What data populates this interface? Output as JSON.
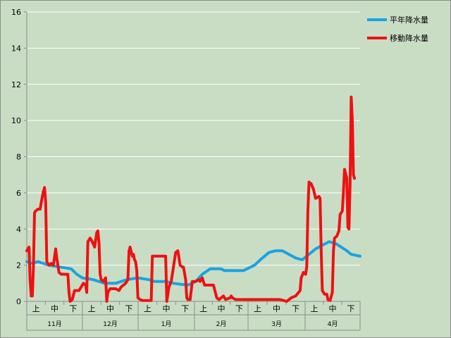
{
  "chart_data": {
    "type": "line",
    "ylim": [
      0,
      16
    ],
    "yticks": [
      0,
      2,
      4,
      6,
      8,
      10,
      12,
      14,
      16
    ],
    "grid": true,
    "legend_position": "top-right",
    "x_sub_labels": [
      "上",
      "中",
      "下"
    ],
    "x_month_labels": [
      "11月",
      "12月",
      "1月",
      "2月",
      "3月",
      "4月"
    ],
    "x_count": 180,
    "series": [
      {
        "name": "平年降水量",
        "color": "#1aa3e0",
        "points": [
          [
            0,
            2.2
          ],
          [
            5,
            2.1
          ],
          [
            10,
            2.2
          ],
          [
            15,
            2.1
          ],
          [
            20,
            2.0
          ],
          [
            30,
            1.9
          ],
          [
            40,
            1.8
          ],
          [
            45,
            1.5
          ],
          [
            50,
            1.3
          ],
          [
            60,
            1.2
          ],
          [
            70,
            1.0
          ],
          [
            80,
            1.0
          ],
          [
            90,
            1.2
          ],
          [
            100,
            1.3
          ],
          [
            110,
            1.2
          ],
          [
            115,
            1.1
          ],
          [
            125,
            1.1
          ],
          [
            132,
            1.0
          ],
          [
            138,
            0.95
          ],
          [
            145,
            0.9
          ],
          [
            152,
            1.1
          ],
          [
            158,
            1.5
          ],
          [
            165,
            1.8
          ],
          [
            175,
            1.8
          ],
          [
            178,
            1.7
          ],
          [
            185,
            1.7
          ],
          [
            195,
            1.7
          ],
          [
            205,
            2.0
          ],
          [
            212,
            2.4
          ],
          [
            218,
            2.7
          ],
          [
            224,
            2.8
          ],
          [
            230,
            2.8
          ],
          [
            236,
            2.6
          ],
          [
            242,
            2.4
          ],
          [
            248,
            2.3
          ],
          [
            254,
            2.6
          ],
          [
            260,
            2.9
          ],
          [
            266,
            3.1
          ],
          [
            272,
            3.3
          ],
          [
            278,
            3.2
          ],
          [
            283,
            3.0
          ],
          [
            288,
            2.8
          ],
          [
            292,
            2.6
          ],
          [
            300,
            2.5
          ]
        ]
      },
      {
        "name": "移動降水量",
        "color": "#ee1111",
        "points": [
          [
            0,
            2.8
          ],
          [
            2,
            3.0
          ],
          [
            3,
            1.2
          ],
          [
            4,
            0.3
          ],
          [
            5,
            0.3
          ],
          [
            6,
            2.0
          ],
          [
            7,
            4.9
          ],
          [
            8,
            5.0
          ],
          [
            10,
            5.1
          ],
          [
            12,
            5.1
          ],
          [
            14,
            5.8
          ],
          [
            15,
            6.1
          ],
          [
            16,
            6.3
          ],
          [
            17,
            5.5
          ],
          [
            18,
            2.2
          ],
          [
            20,
            2.0
          ],
          [
            22,
            2.1
          ],
          [
            24,
            2.0
          ],
          [
            26,
            2.9
          ],
          [
            27,
            2.4
          ],
          [
            29,
            1.6
          ],
          [
            31,
            1.5
          ],
          [
            35,
            1.5
          ],
          [
            37,
            1.5
          ],
          [
            38,
            0.5
          ],
          [
            39,
            0.0
          ],
          [
            41,
            0.1
          ],
          [
            43,
            0.6
          ],
          [
            47,
            0.6
          ],
          [
            51,
            1.0
          ],
          [
            53,
            0.9
          ],
          [
            54,
            0.5
          ],
          [
            55,
            3.3
          ],
          [
            57,
            3.5
          ],
          [
            59,
            3.3
          ],
          [
            61,
            3.0
          ],
          [
            63,
            3.8
          ],
          [
            64,
            3.9
          ],
          [
            65,
            3.2
          ],
          [
            66,
            1.5
          ],
          [
            67,
            1.2
          ],
          [
            69,
            1.1
          ],
          [
            71,
            1.3
          ],
          [
            72,
            0.0
          ],
          [
            73,
            0.5
          ],
          [
            75,
            0.7
          ],
          [
            80,
            0.7
          ],
          [
            83,
            0.6
          ],
          [
            85,
            0.8
          ],
          [
            87,
            0.9
          ],
          [
            89,
            1.0
          ],
          [
            91,
            1.2
          ],
          [
            92,
            2.8
          ],
          [
            93,
            3.0
          ],
          [
            95,
            2.5
          ],
          [
            96,
            2.6
          ],
          [
            97,
            2.3
          ],
          [
            98,
            2.2
          ],
          [
            99,
            1.7
          ],
          [
            100,
            0.2
          ],
          [
            102,
            0.1
          ],
          [
            104,
            0.05
          ],
          [
            108,
            0.05
          ],
          [
            109,
            0.05
          ],
          [
            112,
            0.05
          ],
          [
            113,
            2.5
          ],
          [
            125,
            2.5
          ],
          [
            126,
            0.0
          ],
          [
            128,
            0.8
          ],
          [
            130,
            1.1
          ],
          [
            133,
            2.3
          ],
          [
            134,
            2.7
          ],
          [
            136,
            2.8
          ],
          [
            138,
            2.0
          ],
          [
            140,
            1.9
          ],
          [
            141,
            1.9
          ],
          [
            143,
            1.2
          ],
          [
            144,
            0.2
          ],
          [
            145,
            0.1
          ],
          [
            147,
            0.1
          ],
          [
            149,
            1.1
          ],
          [
            152,
            1.1
          ],
          [
            155,
            1.2
          ],
          [
            156,
            1.1
          ],
          [
            158,
            1.3
          ],
          [
            160,
            0.9
          ],
          [
            163,
            0.9
          ],
          [
            168,
            0.9
          ],
          [
            171,
            0.2
          ],
          [
            173,
            0.1
          ],
          [
            175,
            0.2
          ],
          [
            177,
            0.3
          ],
          [
            179,
            0.1
          ],
          [
            183,
            0.2
          ],
          [
            184,
            0.3
          ],
          [
            185,
            0.2
          ],
          [
            188,
            0.1
          ],
          [
            200,
            0.1
          ],
          [
            215,
            0.1
          ],
          [
            228,
            0.1
          ],
          [
            234,
            0.0
          ],
          [
            236,
            0.1
          ],
          [
            238,
            0.2
          ],
          [
            242,
            0.3
          ],
          [
            246,
            0.6
          ],
          [
            247,
            1.3
          ],
          [
            249,
            1.6
          ],
          [
            251,
            1.5
          ],
          [
            252,
            1.9
          ],
          [
            253,
            5.0
          ],
          [
            254,
            6.6
          ],
          [
            256,
            6.5
          ],
          [
            258,
            6.2
          ],
          [
            260,
            5.7
          ],
          [
            263,
            5.8
          ],
          [
            264,
            5.7
          ],
          [
            265,
            2.8
          ],
          [
            266,
            0.6
          ],
          [
            268,
            0.4
          ],
          [
            270,
            0.4
          ],
          [
            271,
            0.1
          ],
          [
            273,
            0.05
          ],
          [
            275,
            0.5
          ],
          [
            276,
            2.8
          ],
          [
            277,
            3.5
          ],
          [
            279,
            3.6
          ],
          [
            281,
            3.9
          ],
          [
            282,
            4.8
          ],
          [
            284,
            5.0
          ],
          [
            285,
            6.0
          ],
          [
            286,
            7.3
          ],
          [
            288,
            6.8
          ],
          [
            289,
            4.1
          ],
          [
            290,
            4.0
          ],
          [
            291,
            6.5
          ],
          [
            292,
            11.3
          ],
          [
            293,
            10.0
          ],
          [
            294,
            7.0
          ],
          [
            295,
            6.8
          ]
        ]
      }
    ]
  }
}
